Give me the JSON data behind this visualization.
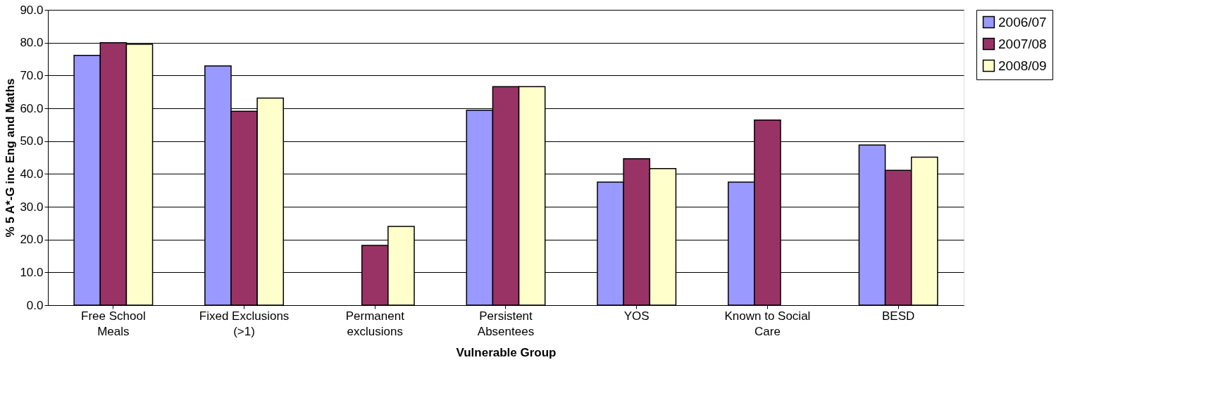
{
  "chart_data": {
    "type": "bar",
    "xlabel": "Vulnerable Group",
    "ylabel": "% 5 A*-G inc Eng and Maths",
    "categories": [
      "Free School Meals",
      "Fixed Exclusions (>1)",
      "Permanent exclusions",
      "Persistent Absentees",
      "YOS",
      "Known to Social Care",
      "BESD"
    ],
    "series": [
      {
        "name": "2006/07",
        "color": "#9999ff",
        "values": [
          76.1,
          72.9,
          null,
          59.4,
          37.5,
          37.5,
          48.8
        ]
      },
      {
        "name": "2007/08",
        "color": "#993366",
        "values": [
          80.0,
          59.1,
          18.2,
          66.6,
          44.6,
          56.4,
          41.1
        ]
      },
      {
        "name": "2008/09",
        "color": "#ffffcc",
        "values": [
          79.5,
          63.1,
          24.0,
          66.6,
          41.6,
          null,
          45.1
        ]
      }
    ],
    "ylim": [
      0,
      90
    ],
    "yticks": [
      {
        "value": 0,
        "label": "0.0"
      },
      {
        "value": 10,
        "label": "10.0"
      },
      {
        "value": 20,
        "label": "20.0"
      },
      {
        "value": 30,
        "label": "30.0"
      },
      {
        "value": 40,
        "label": "40.0"
      },
      {
        "value": 50,
        "label": "50.0"
      },
      {
        "value": 60,
        "label": "60.0"
      },
      {
        "value": 70,
        "label": "70.0"
      },
      {
        "value": 80,
        "label": "80.0"
      },
      {
        "value": 90,
        "label": "90.0"
      }
    ],
    "grid": "y",
    "legend": "right"
  }
}
